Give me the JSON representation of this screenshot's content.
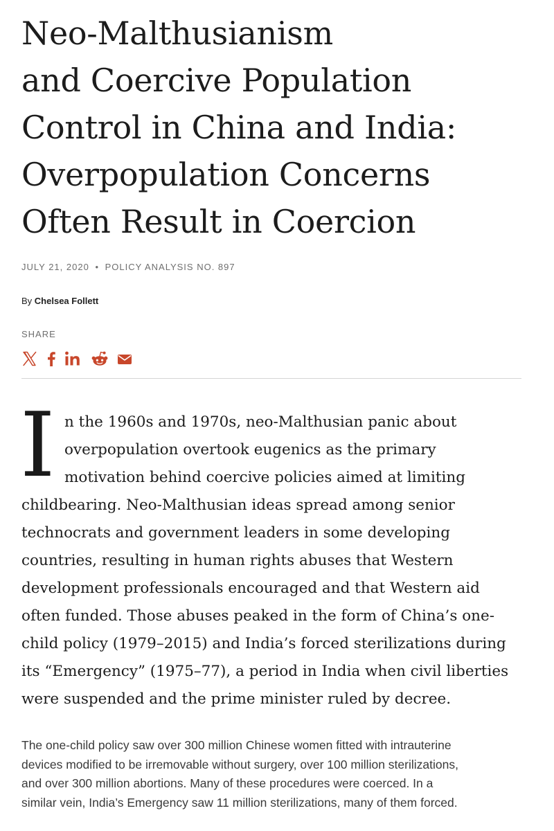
{
  "article": {
    "title_lines": [
      "Neo-Malthusianism",
      "and Coercive Population",
      "Control in China and India:",
      "Overpopulation Concerns",
      "Often Result in Coercion"
    ],
    "date": "JULY 21, 2020",
    "separator": "•",
    "series": "POLICY ANALYSIS NO. 897",
    "byline_prefix": "By",
    "author": "Chelsea Follett"
  },
  "share": {
    "label": "SHARE",
    "accent_color": "#c8472b",
    "icons": [
      "x-icon",
      "facebook-icon",
      "linkedin-icon",
      "reddit-icon",
      "email-icon"
    ]
  },
  "lead": {
    "drop_cap": "I",
    "lines": [
      "n the 1960s and 1970s, neo-Malthusian panic about",
      "overpopulation overtook eugenics as the primary",
      "motivation behind coercive policies aimed at limiting",
      "childbearing. Neo-Malthusian ideas spread among senior",
      "technocrats and government leaders in some developing",
      "countries, resulting in human rights abuses that Western",
      "development professionals encouraged and that Western aid",
      "often funded. Those abuses peaked in the form of China’s one-",
      "child policy (1979–2015) and India’s forced sterilizations during",
      "its “Emergency” (1975–77), a period in India when civil liberties",
      "were suspended and the prime minister ruled by decree."
    ]
  },
  "body": {
    "lines": [
      "The one-child policy saw over 300 million Chinese women fitted with intrauterine",
      "devices modified to be irremovable without surgery, over 100 million sterilizations,",
      "and over 300 million abortions. Many of these procedures were coerced. In a",
      "similar vein, India’s Emergency saw 11 million sterilizations, many of them forced."
    ]
  }
}
